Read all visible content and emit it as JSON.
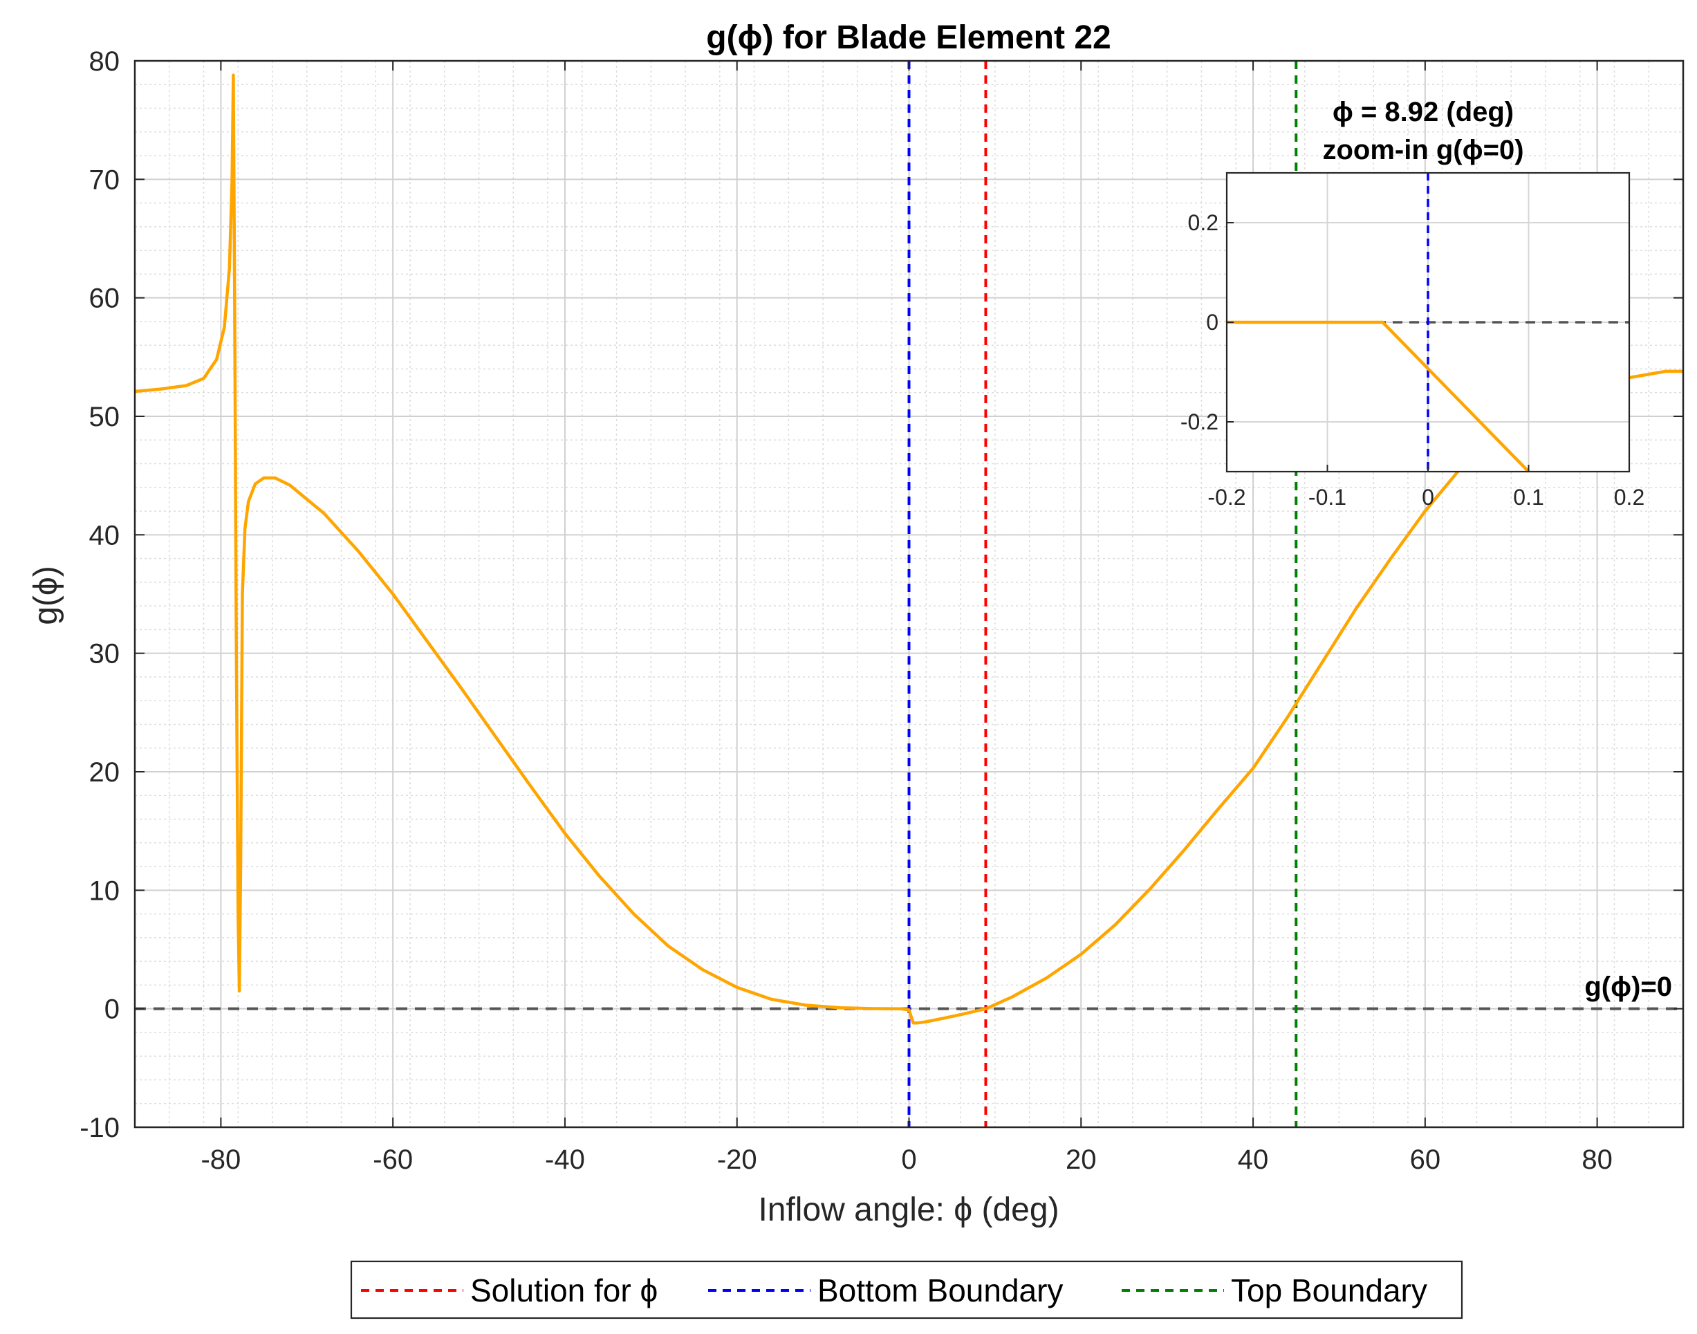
{
  "chart_data": {
    "type": "line",
    "title": "g(ϕ) for Blade Element 22",
    "xlabel": "Inflow angle: ϕ (deg)",
    "ylabel": "g(ϕ)",
    "xlim": [
      -90,
      90
    ],
    "ylim": [
      -10,
      80
    ],
    "xticks": [
      -80,
      -60,
      -40,
      -20,
      0,
      20,
      40,
      60,
      80
    ],
    "yticks": [
      -10,
      0,
      10,
      20,
      30,
      40,
      50,
      60,
      70,
      80
    ],
    "grid": true,
    "minor_grid": true,
    "series": [
      {
        "color": "#FFA500",
        "x": [
          -90,
          -87,
          -84,
          -82,
          -80.5,
          -79.6,
          -79.0,
          -78.7,
          -78.55,
          -78.4,
          -78.2,
          -78.0,
          -77.85,
          -77.7,
          -77.5,
          -77.2,
          -76.8,
          -76.0,
          -75.0,
          -73.7,
          -72,
          -68,
          -64,
          -60,
          -56,
          -52,
          -48,
          -44,
          -40,
          -36,
          -32,
          -28,
          -24,
          -20,
          -16,
          -12,
          -8,
          -4,
          -1,
          0,
          0.5,
          1,
          2,
          4,
          6,
          8.92,
          12,
          16,
          20,
          24,
          28,
          32,
          36,
          40,
          44,
          48,
          52,
          56,
          60,
          64,
          68,
          72,
          76,
          80,
          84,
          88,
          90
        ],
        "y": [
          52.1,
          52.3,
          52.6,
          53.2,
          54.8,
          57.5,
          62.5,
          70,
          78.8,
          60,
          30,
          8,
          1.5,
          12,
          35,
          40.5,
          42.8,
          44.3,
          44.8,
          44.8,
          44.2,
          41.8,
          38.6,
          35.0,
          31.0,
          27.0,
          22.9,
          18.8,
          14.8,
          11.2,
          8.0,
          5.3,
          3.3,
          1.8,
          0.8,
          0.3,
          0.08,
          0.01,
          0.0,
          -0.1,
          -1.2,
          -1.2,
          -1.1,
          -0.8,
          -0.5,
          0.0,
          1.0,
          2.6,
          4.6,
          7.1,
          10.1,
          13.4,
          16.9,
          20.3,
          24.6,
          29.2,
          33.8,
          38.0,
          42.0,
          45.5,
          48.6,
          50.6,
          51.8,
          52.6,
          53.3,
          53.8,
          53.8
        ]
      }
    ],
    "reference_lines": {
      "zero": {
        "y": 0,
        "label": "g(ϕ)=0",
        "color": "#555555"
      },
      "solution": {
        "x": 8.92,
        "name": "Solution for ϕ",
        "color": "#FF0000"
      },
      "bottom": {
        "x": 0,
        "name": "Bottom Boundary",
        "color": "#0000FF"
      },
      "top": {
        "x": 45,
        "name": "Top Boundary",
        "color": "#008000"
      }
    },
    "annotation": {
      "line1": "ϕ = 8.92 (deg)",
      "line2": "zoom-in g(ϕ=0)"
    },
    "inset": {
      "xlim": [
        -0.2,
        0.2
      ],
      "ylim": [
        -0.3,
        0.3
      ],
      "xticks": [
        -0.2,
        -0.1,
        0,
        0.1,
        0.2
      ],
      "xtick_labels": [
        "-0.2",
        "-0.1",
        "0",
        "0.1",
        "0.2"
      ],
      "yticks": [
        -0.2,
        0,
        0.2
      ],
      "ytick_labels": [
        "-0.2",
        "0",
        "0.2"
      ],
      "x": [
        -0.2,
        -0.045,
        0.1
      ],
      "y": [
        0.0,
        0.0,
        -0.3
      ]
    },
    "legend": {
      "placement": "bottom",
      "entries": [
        "Solution for ϕ",
        "Bottom Boundary",
        "Top Boundary"
      ]
    }
  }
}
